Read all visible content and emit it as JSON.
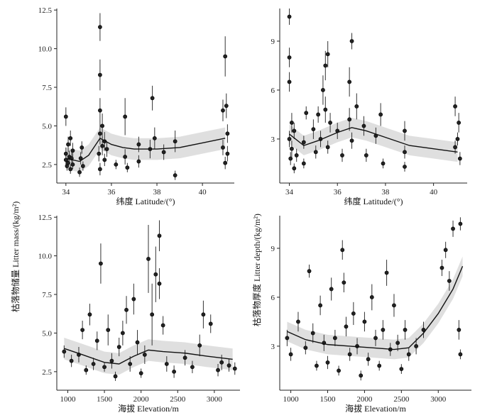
{
  "figure": {
    "ylabel_top": "枯落物储量 Litter mass/(kg/m²)",
    "ylabel_top_right": "枯落物厚度 Litter depth/(kg/m²)"
  },
  "chart_data": [
    {
      "type": "scatter",
      "id": "a",
      "xlabel": "纬度 Latitude/(°)",
      "ylabel": "枯落物储量 Litter mass/(kg/m²)",
      "xlim": [
        33.6,
        41.4
      ],
      "ylim": [
        1.3,
        12.6
      ],
      "xticks": [
        34,
        36,
        38,
        40
      ],
      "yticks": [
        2.5,
        5.0,
        7.5,
        10.0,
        12.5
      ],
      "ytick_labels": [
        "2.5",
        "5.0",
        "7.5",
        "10.0",
        "12.5"
      ],
      "points": [
        [
          34.0,
          2.8,
          0.5
        ],
        [
          34.0,
          3.2,
          0.4
        ],
        [
          34.0,
          5.6,
          0.6
        ],
        [
          34.05,
          2.4,
          0.3
        ],
        [
          34.1,
          3.8,
          0.5
        ],
        [
          34.1,
          2.6,
          0.3
        ],
        [
          34.15,
          3.0,
          0.4
        ],
        [
          34.2,
          2.2,
          0.3
        ],
        [
          34.2,
          4.2,
          0.5
        ],
        [
          34.25,
          2.9,
          0.4
        ],
        [
          34.3,
          3.4,
          0.5
        ],
        [
          34.3,
          2.5,
          0.3
        ],
        [
          34.6,
          2.0,
          0.3
        ],
        [
          34.65,
          2.9,
          0.4
        ],
        [
          34.7,
          3.6,
          0.4
        ],
        [
          34.75,
          2.4,
          0.3
        ],
        [
          35.5,
          11.4,
          0.9
        ],
        [
          35.5,
          8.3,
          1.0
        ],
        [
          35.5,
          6.0,
          0.8
        ],
        [
          35.5,
          4.5,
          0.7
        ],
        [
          35.45,
          3.2,
          0.5
        ],
        [
          35.5,
          2.2,
          0.4
        ],
        [
          35.6,
          3.7,
          0.6
        ],
        [
          35.6,
          5.0,
          0.8
        ],
        [
          35.7,
          4.0,
          0.6
        ],
        [
          35.7,
          2.8,
          0.4
        ],
        [
          35.8,
          3.5,
          0.5
        ],
        [
          36.2,
          2.5,
          0.3
        ],
        [
          36.6,
          5.6,
          1.2
        ],
        [
          36.6,
          3.0,
          0.5
        ],
        [
          36.7,
          2.3,
          0.3
        ],
        [
          37.2,
          3.8,
          0.5
        ],
        [
          37.2,
          2.7,
          0.4
        ],
        [
          37.7,
          3.5,
          0.6
        ],
        [
          37.8,
          6.8,
          0.8
        ],
        [
          37.9,
          4.2,
          0.7
        ],
        [
          38.3,
          3.3,
          0.5
        ],
        [
          38.8,
          4.0,
          0.7
        ],
        [
          38.8,
          1.8,
          0.3
        ],
        [
          40.9,
          6.0,
          0.7
        ],
        [
          40.9,
          3.6,
          0.5
        ],
        [
          41.0,
          9.5,
          1.3
        ],
        [
          41.05,
          6.3,
          0.8
        ],
        [
          41.0,
          2.6,
          0.4
        ],
        [
          41.1,
          3.2,
          0.5
        ],
        [
          41.1,
          4.5,
          0.6
        ]
      ],
      "fit_curve": [
        [
          34.0,
          2.9
        ],
        [
          34.6,
          2.7
        ],
        [
          35.0,
          3.1
        ],
        [
          35.5,
          4.2
        ],
        [
          36.0,
          3.8
        ],
        [
          36.5,
          3.6
        ],
        [
          37.0,
          3.5
        ],
        [
          38.0,
          3.5
        ],
        [
          39.0,
          3.6
        ],
        [
          40.0,
          3.9
        ],
        [
          41.0,
          4.2
        ]
      ],
      "ci_band_halfwidth": 0.7
    },
    {
      "type": "scatter",
      "id": "b",
      "xlabel": "纬度 Latitude/(°)",
      "ylabel": "枯落物厚度 Litter depth/(kg/m²)",
      "xlim": [
        33.6,
        41.4
      ],
      "ylim": [
        0.3,
        11.0
      ],
      "xticks": [
        34,
        36,
        38,
        40
      ],
      "yticks": [
        3,
        6,
        9
      ],
      "ytick_labels": [
        "3",
        "6",
        "9"
      ],
      "points": [
        [
          34.0,
          10.5,
          0.5
        ],
        [
          34.0,
          8.0,
          0.6
        ],
        [
          34.0,
          6.5,
          0.6
        ],
        [
          34.0,
          3.0,
          0.5
        ],
        [
          34.05,
          1.8,
          0.4
        ],
        [
          34.1,
          2.4,
          0.5
        ],
        [
          34.1,
          4.0,
          0.6
        ],
        [
          34.2,
          1.2,
          0.3
        ],
        [
          34.2,
          3.5,
          0.5
        ],
        [
          34.3,
          2.0,
          0.4
        ],
        [
          34.6,
          1.5,
          0.3
        ],
        [
          34.6,
          2.8,
          0.4
        ],
        [
          34.7,
          4.6,
          0.4
        ],
        [
          35.0,
          3.6,
          0.6
        ],
        [
          35.1,
          2.2,
          0.4
        ],
        [
          35.2,
          4.5,
          0.5
        ],
        [
          35.3,
          3.0,
          0.5
        ],
        [
          35.4,
          6.0,
          0.9
        ],
        [
          35.5,
          4.8,
          0.8
        ],
        [
          35.5,
          7.5,
          0.9
        ],
        [
          35.6,
          8.2,
          0.8
        ],
        [
          35.6,
          2.5,
          0.4
        ],
        [
          35.7,
          4.0,
          0.6
        ],
        [
          36.0,
          3.5,
          0.5
        ],
        [
          36.2,
          2.0,
          0.4
        ],
        [
          36.5,
          4.2,
          0.7
        ],
        [
          36.5,
          6.5,
          0.9
        ],
        [
          36.6,
          9.0,
          0.5
        ],
        [
          36.6,
          2.9,
          0.5
        ],
        [
          36.8,
          5.0,
          0.8
        ],
        [
          37.1,
          3.8,
          0.6
        ],
        [
          37.2,
          2.0,
          0.4
        ],
        [
          37.6,
          3.2,
          0.5
        ],
        [
          37.8,
          4.5,
          0.7
        ],
        [
          37.9,
          1.5,
          0.3
        ],
        [
          38.8,
          3.5,
          0.6
        ],
        [
          38.8,
          2.2,
          0.4
        ],
        [
          38.8,
          1.3,
          0.3
        ],
        [
          40.9,
          5.0,
          0.6
        ],
        [
          40.9,
          2.5,
          0.4
        ],
        [
          41.0,
          3.0,
          0.4
        ],
        [
          41.1,
          1.8,
          0.4
        ],
        [
          41.05,
          4.0,
          0.6
        ]
      ],
      "fit_curve": [
        [
          34.0,
          3.3
        ],
        [
          34.6,
          2.6
        ],
        [
          35.2,
          2.9
        ],
        [
          36.0,
          3.4
        ],
        [
          36.6,
          3.7
        ],
        [
          37.2,
          3.5
        ],
        [
          38.0,
          3.1
        ],
        [
          39.0,
          2.6
        ],
        [
          40.0,
          2.4
        ],
        [
          41.0,
          2.2
        ]
      ],
      "ci_band_halfwidth": 0.6
    },
    {
      "type": "scatter",
      "id": "c",
      "xlabel": "海拔 Elevation/m",
      "ylabel": "枯落物储量 Litter mass/(kg/m²)",
      "xlim": [
        850,
        3350
      ],
      "ylim": [
        1.3,
        12.6
      ],
      "xticks": [
        1000,
        1500,
        2000,
        2500,
        3000
      ],
      "yticks": [
        2.5,
        5.0,
        7.5,
        10.0,
        12.5
      ],
      "ytick_labels": [
        "2.5",
        "5.0",
        "7.5",
        "10.0",
        "12.5"
      ],
      "points": [
        [
          950,
          3.8,
          0.4
        ],
        [
          1050,
          3.2,
          0.4
        ],
        [
          1150,
          3.6,
          0.5
        ],
        [
          1200,
          5.2,
          0.6
        ],
        [
          1250,
          2.6,
          0.3
        ],
        [
          1300,
          6.2,
          0.7
        ],
        [
          1350,
          3.0,
          0.4
        ],
        [
          1400,
          4.5,
          0.6
        ],
        [
          1450,
          9.5,
          1.3
        ],
        [
          1500,
          2.8,
          0.3
        ],
        [
          1550,
          5.2,
          1.0
        ],
        [
          1600,
          3.2,
          0.5
        ],
        [
          1650,
          2.2,
          0.3
        ],
        [
          1700,
          4.1,
          0.6
        ],
        [
          1750,
          5.0,
          0.8
        ],
        [
          1800,
          6.5,
          0.9
        ],
        [
          1850,
          3.0,
          0.5
        ],
        [
          1900,
          7.2,
          1.0
        ],
        [
          1950,
          4.4,
          0.8
        ],
        [
          2000,
          2.4,
          0.3
        ],
        [
          2050,
          3.6,
          0.6
        ],
        [
          2100,
          9.8,
          2.2
        ],
        [
          2150,
          6.2,
          2.0
        ],
        [
          2200,
          8.8,
          1.8
        ],
        [
          2250,
          11.3,
          1.0
        ],
        [
          2250,
          8.2,
          1.0
        ],
        [
          2300,
          5.5,
          0.6
        ],
        [
          2350,
          3.0,
          0.5
        ],
        [
          2450,
          2.5,
          0.4
        ],
        [
          2600,
          3.4,
          0.5
        ],
        [
          2700,
          2.8,
          0.4
        ],
        [
          2800,
          4.2,
          0.7
        ],
        [
          2850,
          6.2,
          0.9
        ],
        [
          2950,
          5.6,
          0.6
        ],
        [
          3050,
          2.6,
          0.4
        ],
        [
          3100,
          3.1,
          0.5
        ],
        [
          3200,
          2.9,
          0.4
        ],
        [
          3280,
          2.7,
          0.4
        ]
      ],
      "fit_curve": [
        [
          950,
          4.0
        ],
        [
          1200,
          3.6
        ],
        [
          1500,
          3.1
        ],
        [
          1700,
          3.0
        ],
        [
          1900,
          3.5
        ],
        [
          2100,
          3.9
        ],
        [
          2300,
          3.8
        ],
        [
          2600,
          3.7
        ],
        [
          2900,
          3.5
        ],
        [
          3250,
          3.3
        ]
      ],
      "ci_band_halfwidth": 0.7
    },
    {
      "type": "scatter",
      "id": "d",
      "xlabel": "海拔 Elevation/m",
      "ylabel": "枯落物厚度 Litter depth/(kg/m²)",
      "xlim": [
        850,
        3450
      ],
      "ylim": [
        0.3,
        11.0
      ],
      "xticks": [
        1000,
        1500,
        2000,
        2500,
        3000
      ],
      "yticks": [
        3,
        6,
        9
      ],
      "ytick_labels": [
        "3",
        "6",
        "9"
      ],
      "points": [
        [
          950,
          3.5,
          0.5
        ],
        [
          1000,
          2.5,
          0.4
        ],
        [
          1100,
          4.5,
          0.6
        ],
        [
          1200,
          2.9,
          0.4
        ],
        [
          1250,
          7.6,
          0.4
        ],
        [
          1300,
          3.8,
          0.6
        ],
        [
          1350,
          1.8,
          0.3
        ],
        [
          1400,
          5.5,
          0.6
        ],
        [
          1450,
          3.2,
          0.5
        ],
        [
          1500,
          2.0,
          0.4
        ],
        [
          1550,
          6.5,
          0.7
        ],
        [
          1600,
          3.5,
          0.5
        ],
        [
          1650,
          1.5,
          0.3
        ],
        [
          1700,
          8.9,
          0.6
        ],
        [
          1720,
          6.9,
          0.6
        ],
        [
          1750,
          4.2,
          0.6
        ],
        [
          1800,
          2.5,
          0.4
        ],
        [
          1850,
          5.0,
          0.7
        ],
        [
          1900,
          3.0,
          0.5
        ],
        [
          1950,
          1.2,
          0.3
        ],
        [
          2000,
          4.5,
          0.6
        ],
        [
          2050,
          2.2,
          0.4
        ],
        [
          2100,
          6.0,
          0.8
        ],
        [
          2150,
          3.5,
          0.5
        ],
        [
          2200,
          1.8,
          0.3
        ],
        [
          2250,
          4.0,
          0.6
        ],
        [
          2300,
          7.5,
          0.8
        ],
        [
          2350,
          2.8,
          0.4
        ],
        [
          2400,
          5.5,
          0.7
        ],
        [
          2450,
          3.2,
          0.5
        ],
        [
          2500,
          1.6,
          0.3
        ],
        [
          2550,
          4.0,
          0.6
        ],
        [
          2600,
          2.5,
          0.4
        ],
        [
          2700,
          3.0,
          0.5
        ],
        [
          2800,
          4.0,
          0.5
        ],
        [
          3050,
          7.8,
          0.5
        ],
        [
          3100,
          8.9,
          0.5
        ],
        [
          3150,
          7.0,
          0.6
        ],
        [
          3200,
          10.2,
          0.5
        ],
        [
          3280,
          4.0,
          0.6
        ],
        [
          3300,
          10.5,
          0.4
        ],
        [
          3300,
          2.5,
          0.3
        ]
      ],
      "fit_curve": [
        [
          950,
          3.9
        ],
        [
          1200,
          3.4
        ],
        [
          1500,
          3.1
        ],
        [
          1800,
          3.0
        ],
        [
          2100,
          2.9
        ],
        [
          2400,
          2.8
        ],
        [
          2600,
          2.9
        ],
        [
          2800,
          3.8
        ],
        [
          3000,
          5.0
        ],
        [
          3200,
          6.5
        ],
        [
          3330,
          7.9
        ]
      ],
      "ci_band_halfwidth": 0.6
    }
  ]
}
